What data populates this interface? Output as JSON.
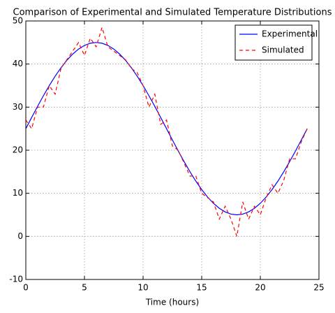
{
  "chart_data": {
    "type": "line",
    "title": "Comparison of Experimental and Simulated Temperature Distributions",
    "x_label": "Time (hours)",
    "x": [
      0,
      0.5,
      1,
      1.5,
      2,
      2.5,
      3,
      3.5,
      4,
      4.5,
      5,
      5.5,
      6,
      6.5,
      7,
      7.5,
      8,
      8.5,
      9,
      9.5,
      10,
      10.5,
      11,
      11.5,
      12,
      12.5,
      13,
      13.5,
      14,
      14.5,
      15,
      15.5,
      16,
      16.5,
      17,
      17.5,
      18,
      18.5,
      19,
      19.5,
      20,
      20.5,
      21,
      21.5,
      22,
      22.5,
      23,
      23.5,
      24
    ],
    "series": [
      {
        "name": "Experimental",
        "color": "#0000ff",
        "style": "solid",
        "values": [
          25,
          27.61,
          30.18,
          32.65,
          35,
          37.18,
          39.14,
          40.87,
          42.32,
          43.48,
          44.32,
          44.83,
          45,
          44.83,
          44.32,
          43.48,
          42.32,
          40.87,
          39.14,
          37.18,
          35,
          32.65,
          30.18,
          27.61,
          25,
          22.39,
          19.82,
          17.35,
          15,
          12.82,
          10.86,
          9.13,
          7.68,
          6.52,
          5.68,
          5.17,
          5,
          5.17,
          5.68,
          6.52,
          7.68,
          9.13,
          10.86,
          12.82,
          15,
          17.35,
          19.82,
          22.39,
          25
        ]
      },
      {
        "name": "Simulated",
        "color": "#ff0000",
        "style": "dashed",
        "values": [
          27,
          25,
          30,
          30,
          35,
          33,
          39,
          41,
          43,
          45,
          42,
          46,
          44,
          48.5,
          44,
          43,
          42,
          41,
          39,
          38,
          35,
          30,
          33,
          26,
          27,
          21,
          20,
          17,
          14,
          14,
          10,
          9,
          8,
          4,
          7,
          4,
          0,
          8,
          4,
          7,
          5,
          9,
          12,
          10,
          13,
          18,
          18,
          22,
          25
        ]
      }
    ],
    "xlim": [
      0,
      25
    ],
    "xticks": [
      0,
      5,
      10,
      15,
      20,
      25
    ],
    "ylim": [
      -10,
      50
    ],
    "yticks": [
      -10,
      0,
      10,
      20,
      30,
      40,
      50
    ],
    "grid": true,
    "legend": "upper right"
  }
}
